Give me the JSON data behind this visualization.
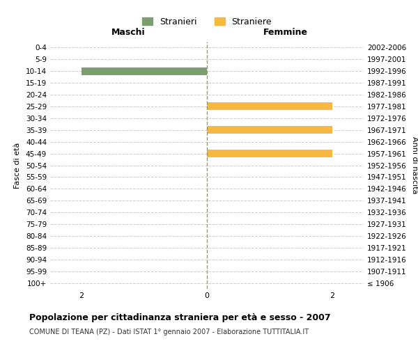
{
  "age_groups": [
    "0-4",
    "5-9",
    "10-14",
    "15-19",
    "20-24",
    "25-29",
    "30-34",
    "35-39",
    "40-44",
    "45-49",
    "50-54",
    "55-59",
    "60-64",
    "65-69",
    "70-74",
    "75-79",
    "80-84",
    "85-89",
    "90-94",
    "95-99",
    "100+"
  ],
  "birth_years": [
    "2002-2006",
    "1997-2001",
    "1992-1996",
    "1987-1991",
    "1982-1986",
    "1977-1981",
    "1972-1976",
    "1967-1971",
    "1962-1966",
    "1957-1961",
    "1952-1956",
    "1947-1951",
    "1942-1946",
    "1937-1941",
    "1932-1936",
    "1927-1931",
    "1922-1926",
    "1917-1921",
    "1912-1916",
    "1907-1911",
    "≤ 1906"
  ],
  "males": [
    0,
    0,
    2,
    0,
    0,
    0,
    0,
    0,
    0,
    0,
    0,
    0,
    0,
    0,
    0,
    0,
    0,
    0,
    0,
    0,
    0
  ],
  "females": [
    0,
    0,
    0,
    0,
    0,
    2,
    0,
    2,
    0,
    2,
    0,
    0,
    0,
    0,
    0,
    0,
    0,
    0,
    0,
    0,
    0
  ],
  "male_color": "#7a9e6e",
  "female_color": "#f5b942",
  "background_color": "#ffffff",
  "grid_color": "#cccccc",
  "title": "Popolazione per cittadinanza straniera per età e sesso - 2007",
  "subtitle": "COMUNE DI TEANA (PZ) - Dati ISTAT 1° gennaio 2007 - Elaborazione TUTTITALIA.IT",
  "xlabel_left": "Maschi",
  "xlabel_right": "Femmine",
  "ylabel_left": "Fasce di età",
  "ylabel_right": "Anni di nascita",
  "legend_males": "Stranieri",
  "legend_females": "Straniere",
  "xlim": 2.5,
  "xticks": [
    -2,
    0,
    2
  ]
}
